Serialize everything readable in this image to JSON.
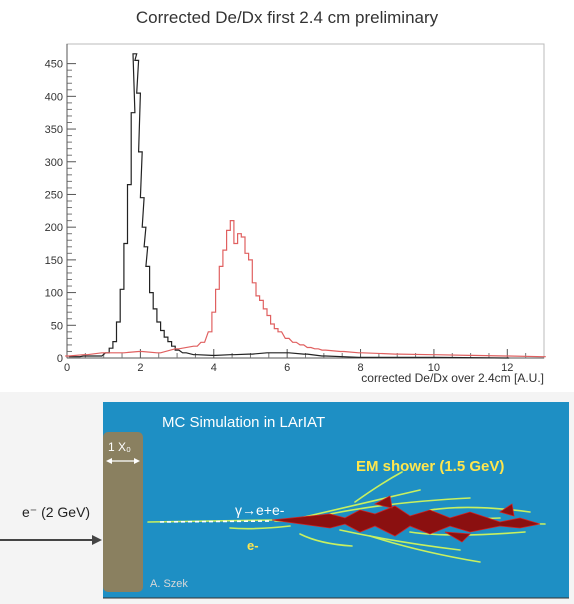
{
  "chart_data": {
    "type": "histogram",
    "title": "Corrected De/Dx first 2.4 cm preliminary",
    "xlabel": "corrected De/Dx over 2.4cm [A.U.]",
    "ylabel": "",
    "xlim": [
      0,
      13
    ],
    "ylim": [
      0,
      480
    ],
    "x_tick_labels": [
      "0",
      "2",
      "4",
      "6",
      "8",
      "10",
      "12"
    ],
    "y_tick_labels": [
      "0",
      "50",
      "100",
      "150",
      "200",
      "250",
      "300",
      "350",
      "400",
      "450"
    ],
    "bin_width": 0.1,
    "grid": false,
    "series": [
      {
        "color": "#222222",
        "x": [
          0.1,
          0.3,
          0.5,
          0.7,
          0.9,
          1.1,
          1.2,
          1.3,
          1.4,
          1.5,
          1.6,
          1.7,
          1.8,
          1.85,
          1.9,
          1.95,
          2.0,
          2.05,
          2.1,
          2.15,
          2.2,
          2.3,
          2.4,
          2.5,
          2.6,
          2.7,
          2.8,
          2.9,
          3.0,
          3.2,
          3.5,
          4.0,
          4.5,
          5.0,
          5.5,
          6.0,
          6.5,
          7.0,
          8.0,
          10.0,
          12.0
        ],
        "y": [
          2,
          2,
          3,
          3,
          3,
          8,
          15,
          25,
          55,
          105,
          175,
          265,
          375,
          465,
          455,
          405,
          315,
          245,
          200,
          170,
          140,
          100,
          75,
          55,
          42,
          32,
          25,
          18,
          12,
          8,
          5,
          4,
          5,
          6,
          8,
          8,
          6,
          3,
          1,
          1,
          0
        ]
      },
      {
        "color": "#e06060",
        "x": [
          0.0,
          0.5,
          1.0,
          1.5,
          2.0,
          2.5,
          3.0,
          3.5,
          3.7,
          3.9,
          4.0,
          4.1,
          4.2,
          4.3,
          4.4,
          4.5,
          4.6,
          4.7,
          4.8,
          4.9,
          5.0,
          5.1,
          5.2,
          5.3,
          5.4,
          5.5,
          5.6,
          5.7,
          5.8,
          6.0,
          6.2,
          6.4,
          6.6,
          6.8,
          7.0,
          7.5,
          8.0,
          9.0,
          10.0,
          11.0,
          12.0,
          13.0
        ],
        "y": [
          3,
          5,
          8,
          8,
          10,
          8,
          14,
          18,
          24,
          40,
          70,
          105,
          140,
          165,
          195,
          210,
          175,
          190,
          185,
          160,
          150,
          115,
          95,
          88,
          75,
          65,
          52,
          45,
          40,
          30,
          24,
          20,
          16,
          14,
          12,
          10,
          8,
          6,
          5,
          4,
          3,
          2
        ]
      }
    ]
  },
  "simulation": {
    "title": "MC Simulation in LArIAT",
    "shower_label": "EM shower (1.5 GeV)",
    "beam_label": "e⁻ (2 GeV)",
    "radiation_length": "1 X₀",
    "conversion_label": "γ→e+e-",
    "electron_label": "e-",
    "credit": "A. Szek",
    "colors": {
      "background": "#1e8fc4",
      "slab": "#8a8060",
      "shower_core": "#8b1010",
      "track": "#c8f060",
      "label": "#ffe64d"
    }
  }
}
